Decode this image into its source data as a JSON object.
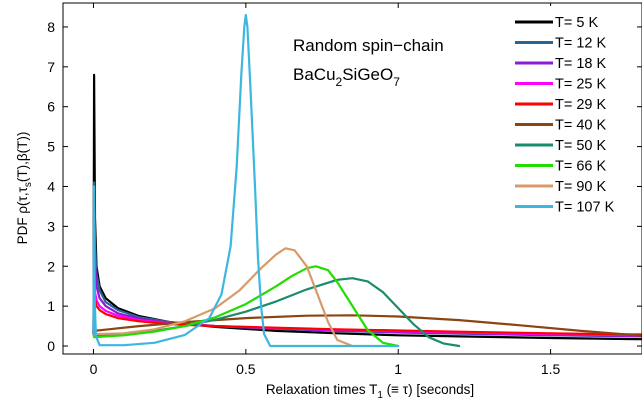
{
  "chart_data": {
    "type": "line",
    "annotation": {
      "line1": "Random spin−chain",
      "line2_base": "BaCu",
      "line2_sub1": "2",
      "line2_mid": "SiGeO",
      "line2_sub2": "7"
    },
    "xlabel": {
      "pre": "Relaxation times T",
      "sub": "1",
      "post": " (≡ τ) [seconds]"
    },
    "ylabel": {
      "pre": "PDF  ρ(τ,τ",
      "sub": "s",
      "post": "(T),β(T))"
    },
    "xlim": [
      -0.1,
      1.8
    ],
    "ylim": [
      -0.2,
      8.6
    ],
    "xticks": [
      0,
      0.5,
      1,
      1.5
    ],
    "xtick_labels": [
      "0",
      "0.5",
      "1",
      "1.5"
    ],
    "yticks": [
      0,
      1,
      2,
      3,
      4,
      5,
      6,
      7,
      8
    ],
    "ytick_labels": [
      "0",
      "1",
      "2",
      "3",
      "4",
      "5",
      "6",
      "7",
      "8"
    ],
    "grid": false,
    "legend_position": "top-right",
    "series": [
      {
        "name": "T= 5 K",
        "color": "#000000",
        "points": [
          [
            0,
            0.3
          ],
          [
            0.002,
            6.8
          ],
          [
            0.005,
            3.2
          ],
          [
            0.01,
            2.0
          ],
          [
            0.02,
            1.5
          ],
          [
            0.04,
            1.2
          ],
          [
            0.08,
            0.95
          ],
          [
            0.15,
            0.75
          ],
          [
            0.25,
            0.6
          ],
          [
            0.4,
            0.48
          ],
          [
            0.6,
            0.38
          ],
          [
            0.8,
            0.32
          ],
          [
            1.0,
            0.27
          ],
          [
            1.2,
            0.24
          ],
          [
            1.5,
            0.2
          ],
          [
            1.8,
            0.17
          ]
        ]
      },
      {
        "name": "T= 12 K",
        "color": "#2a6496",
        "points": [
          [
            0,
            0.3
          ],
          [
            0.002,
            4.1
          ],
          [
            0.005,
            2.6
          ],
          [
            0.01,
            1.8
          ],
          [
            0.02,
            1.4
          ],
          [
            0.04,
            1.1
          ],
          [
            0.08,
            0.9
          ],
          [
            0.15,
            0.72
          ],
          [
            0.25,
            0.6
          ],
          [
            0.4,
            0.5
          ],
          [
            0.6,
            0.43
          ],
          [
            0.8,
            0.38
          ],
          [
            1.0,
            0.34
          ],
          [
            1.2,
            0.31
          ],
          [
            1.5,
            0.27
          ],
          [
            1.8,
            0.24
          ]
        ]
      },
      {
        "name": "T= 18 K",
        "color": "#8a1bd6",
        "points": [
          [
            0,
            0.3
          ],
          [
            0.002,
            2.7
          ],
          [
            0.005,
            2.0
          ],
          [
            0.01,
            1.5
          ],
          [
            0.02,
            1.2
          ],
          [
            0.04,
            1.0
          ],
          [
            0.08,
            0.82
          ],
          [
            0.15,
            0.68
          ],
          [
            0.25,
            0.58
          ],
          [
            0.4,
            0.5
          ],
          [
            0.6,
            0.44
          ],
          [
            0.8,
            0.39
          ],
          [
            1.0,
            0.35
          ],
          [
            1.2,
            0.32
          ],
          [
            1.5,
            0.28
          ],
          [
            1.8,
            0.25
          ]
        ]
      },
      {
        "name": "T= 25 K",
        "color": "#ff00ff",
        "points": [
          [
            0,
            0.3
          ],
          [
            0.002,
            1.7
          ],
          [
            0.005,
            1.35
          ],
          [
            0.01,
            1.15
          ],
          [
            0.02,
            1.0
          ],
          [
            0.04,
            0.88
          ],
          [
            0.08,
            0.76
          ],
          [
            0.15,
            0.65
          ],
          [
            0.25,
            0.57
          ],
          [
            0.4,
            0.5
          ],
          [
            0.6,
            0.45
          ],
          [
            0.8,
            0.41
          ],
          [
            1.0,
            0.37
          ],
          [
            1.2,
            0.34
          ],
          [
            1.5,
            0.3
          ],
          [
            1.8,
            0.27
          ]
        ]
      },
      {
        "name": "T= 29 K",
        "color": "#ff0000",
        "points": [
          [
            0,
            0.3
          ],
          [
            0.002,
            1.3
          ],
          [
            0.005,
            1.15
          ],
          [
            0.01,
            1.0
          ],
          [
            0.02,
            0.9
          ],
          [
            0.04,
            0.8
          ],
          [
            0.08,
            0.7
          ],
          [
            0.15,
            0.62
          ],
          [
            0.25,
            0.55
          ],
          [
            0.4,
            0.5
          ],
          [
            0.6,
            0.46
          ],
          [
            0.8,
            0.42
          ],
          [
            1.0,
            0.39
          ],
          [
            1.2,
            0.36
          ],
          [
            1.5,
            0.32
          ],
          [
            1.8,
            0.29
          ]
        ]
      },
      {
        "name": "T= 40 K",
        "color": "#8b4513",
        "points": [
          [
            0,
            0.3
          ],
          [
            0.002,
            0.38
          ],
          [
            0.05,
            0.42
          ],
          [
            0.15,
            0.5
          ],
          [
            0.3,
            0.6
          ],
          [
            0.5,
            0.7
          ],
          [
            0.7,
            0.76
          ],
          [
            0.85,
            0.77
          ],
          [
            1.0,
            0.74
          ],
          [
            1.2,
            0.65
          ],
          [
            1.4,
            0.52
          ],
          [
            1.6,
            0.38
          ],
          [
            1.8,
            0.26
          ]
        ]
      },
      {
        "name": "T= 50 K",
        "color": "#1a8c6e",
        "points": [
          [
            0,
            0.3
          ],
          [
            0.002,
            0.25
          ],
          [
            0.1,
            0.3
          ],
          [
            0.2,
            0.38
          ],
          [
            0.3,
            0.5
          ],
          [
            0.4,
            0.66
          ],
          [
            0.5,
            0.86
          ],
          [
            0.6,
            1.12
          ],
          [
            0.7,
            1.42
          ],
          [
            0.8,
            1.66
          ],
          [
            0.85,
            1.7
          ],
          [
            0.9,
            1.62
          ],
          [
            0.95,
            1.35
          ],
          [
            1.0,
            0.95
          ],
          [
            1.05,
            0.55
          ],
          [
            1.1,
            0.22
          ],
          [
            1.15,
            0.06
          ],
          [
            1.2,
            0.0
          ]
        ]
      },
      {
        "name": "T= 66 K",
        "color": "#22dd00",
        "points": [
          [
            0,
            0.3
          ],
          [
            0.002,
            0.22
          ],
          [
            0.1,
            0.27
          ],
          [
            0.2,
            0.36
          ],
          [
            0.3,
            0.5
          ],
          [
            0.4,
            0.72
          ],
          [
            0.5,
            1.05
          ],
          [
            0.6,
            1.5
          ],
          [
            0.65,
            1.75
          ],
          [
            0.7,
            1.95
          ],
          [
            0.73,
            2.0
          ],
          [
            0.77,
            1.9
          ],
          [
            0.8,
            1.6
          ],
          [
            0.85,
            1.0
          ],
          [
            0.9,
            0.4
          ],
          [
            0.95,
            0.08
          ],
          [
            1.0,
            0.0
          ]
        ]
      },
      {
        "name": "T= 90 K",
        "color": "#d89a6a",
        "points": [
          [
            0,
            0.3
          ],
          [
            0.002,
            0.3
          ],
          [
            0.1,
            0.32
          ],
          [
            0.2,
            0.42
          ],
          [
            0.3,
            0.62
          ],
          [
            0.4,
            0.95
          ],
          [
            0.48,
            1.4
          ],
          [
            0.55,
            1.95
          ],
          [
            0.6,
            2.3
          ],
          [
            0.63,
            2.45
          ],
          [
            0.66,
            2.4
          ],
          [
            0.7,
            2.0
          ],
          [
            0.73,
            1.4
          ],
          [
            0.77,
            0.6
          ],
          [
            0.8,
            0.15
          ],
          [
            0.85,
            0.0
          ]
        ]
      },
      {
        "name": "T= 107 K",
        "color": "#3db7e0",
        "points": [
          [
            0,
            0.3
          ],
          [
            0.002,
            4.0
          ],
          [
            0.004,
            1.2
          ],
          [
            0.008,
            0.25
          ],
          [
            0.02,
            0.02
          ],
          [
            0.1,
            0.02
          ],
          [
            0.2,
            0.08
          ],
          [
            0.3,
            0.28
          ],
          [
            0.38,
            0.7
          ],
          [
            0.42,
            1.3
          ],
          [
            0.45,
            2.5
          ],
          [
            0.47,
            4.5
          ],
          [
            0.485,
            6.8
          ],
          [
            0.495,
            8.0
          ],
          [
            0.5,
            8.3
          ],
          [
            0.505,
            8.0
          ],
          [
            0.515,
            6.5
          ],
          [
            0.53,
            4.0
          ],
          [
            0.54,
            2.2
          ],
          [
            0.55,
            1.0
          ],
          [
            0.56,
            0.3
          ],
          [
            0.58,
            0.0
          ],
          [
            0.7,
            0.0
          ],
          [
            1.0,
            0.0
          ]
        ]
      }
    ]
  }
}
